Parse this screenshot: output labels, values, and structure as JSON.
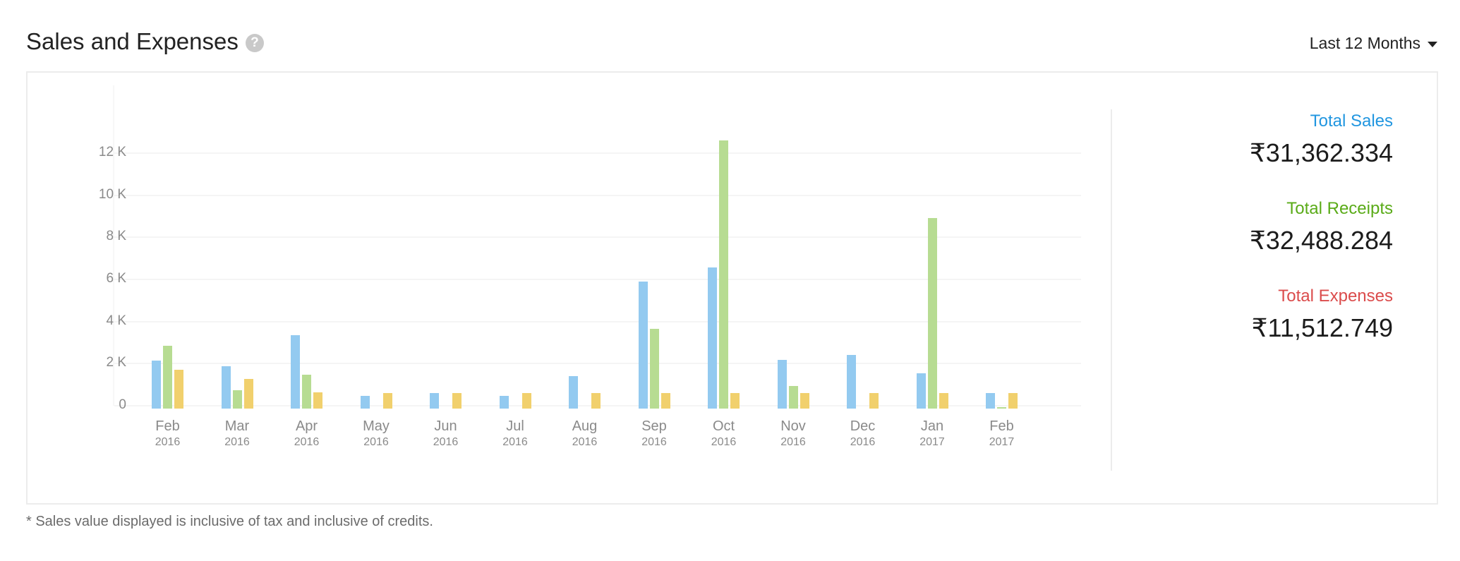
{
  "header": {
    "title": "Sales and Expenses",
    "help_icon": "question-circle-icon",
    "period_selector": "Last 12 Months",
    "period_icon": "caret-down-icon"
  },
  "colors": {
    "sales": "#93caf0",
    "receipts": "#b7dc92",
    "expenses": "#f1d06d",
    "sales_label": "#2196e0",
    "receipts_label": "#5aab18",
    "expenses_label": "#db4c4c"
  },
  "totals": [
    {
      "label": "Total Sales",
      "value": "₹31,362.334",
      "color": "#2196e0"
    },
    {
      "label": "Total Receipts",
      "value": "₹32,488.284",
      "color": "#5aab18"
    },
    {
      "label": "Total Expenses",
      "value": "₹11,512.749",
      "color": "#db4c4c"
    }
  ],
  "footnote": "* Sales value displayed is inclusive of tax and inclusive of credits.",
  "chart_data": {
    "type": "bar",
    "title": "Sales and Expenses",
    "xlabel": "",
    "ylabel": "",
    "ylim": [
      0,
      12000
    ],
    "yticks": [
      "0",
      "2 K",
      "4 K",
      "6 K",
      "8 K",
      "10 K",
      "12 K"
    ],
    "ytick_values": [
      0,
      2000,
      4000,
      6000,
      8000,
      10000,
      12000
    ],
    "grid": true,
    "legend": "none (totals panel on right)",
    "categories": [
      "Feb 2016",
      "Mar 2016",
      "Apr 2016",
      "May 2016",
      "Jun 2016",
      "Jul 2016",
      "Aug 2016",
      "Sep 2016",
      "Oct 2016",
      "Nov 2016",
      "Dec 2016",
      "Jan 2017",
      "Feb 2017"
    ],
    "category_months": [
      "Feb",
      "Mar",
      "Apr",
      "May",
      "Jun",
      "Jul",
      "Aug",
      "Sep",
      "Oct",
      "Nov",
      "Dec",
      "Jan",
      "Feb"
    ],
    "category_years": [
      "2016",
      "2016",
      "2016",
      "2016",
      "2016",
      "2016",
      "2016",
      "2016",
      "2016",
      "2016",
      "2016",
      "2017",
      "2017"
    ],
    "series": [
      {
        "name": "Sales",
        "color": "#93caf0",
        "values": [
          2280,
          2000,
          3500,
          600,
          750,
          600,
          1550,
          6050,
          6700,
          2300,
          2550,
          1680,
          750
        ]
      },
      {
        "name": "Receipts",
        "color": "#b7dc92",
        "values": [
          3000,
          870,
          1600,
          0,
          0,
          0,
          0,
          3800,
          12750,
          1070,
          0,
          9050,
          50
        ]
      },
      {
        "name": "Expenses",
        "color": "#f1d06d",
        "values": [
          1850,
          1400,
          770,
          750,
          750,
          750,
          750,
          750,
          750,
          750,
          750,
          750,
          750
        ]
      }
    ]
  }
}
